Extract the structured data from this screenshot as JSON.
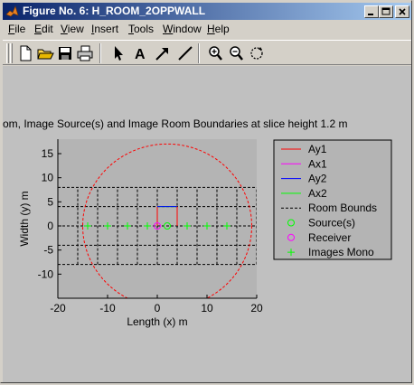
{
  "window": {
    "title": "Figure No. 6: H_ROOM_2OPPWALL",
    "minimize_label": "minimize",
    "maximize_label": "maximize",
    "close_label": "close"
  },
  "menu": [
    {
      "label": "File",
      "mnemonic": "F",
      "rest": "ile"
    },
    {
      "label": "Edit",
      "mnemonic": "E",
      "rest": "dit"
    },
    {
      "label": "View",
      "mnemonic": "V",
      "rest": "iew"
    },
    {
      "label": "Insert",
      "mnemonic": "I",
      "rest": "nsert"
    },
    {
      "label": "Tools",
      "mnemonic": "T",
      "rest": "ools"
    },
    {
      "label": "Window",
      "mnemonic": "W",
      "rest": "indow"
    },
    {
      "label": "Help",
      "mnemonic": "H",
      "rest": "elp"
    }
  ],
  "toolbar": {
    "icons": [
      "new-file-icon",
      "open-folder-icon",
      "save-icon",
      "print-icon",
      "arrow-select-icon",
      "text-insert-icon",
      "arrow-insert-icon",
      "line-insert-icon",
      "zoom-in-icon",
      "zoom-out-icon",
      "rotate-icon"
    ],
    "text_tool_glyph": "A"
  },
  "chart_data": {
    "type": "scatter",
    "title": "om, Image Source(s) and Image Room Boundaries at slice height 1.2 m",
    "xlabel": "Length (x) m",
    "ylabel": "Width (y) m",
    "xlim": [
      -20,
      20
    ],
    "ylim": [
      -15,
      18
    ],
    "xticks": [
      -20,
      -10,
      0,
      10,
      20
    ],
    "yticks": [
      -10,
      -5,
      0,
      5,
      10,
      15
    ],
    "grid": false,
    "legend_position": "right",
    "legend": [
      "Ay1",
      "Ax1",
      "Ay2",
      "Ax2",
      "Room Bounds",
      "Source(s)",
      "Receiver",
      "Images Mono"
    ],
    "colors": {
      "Ay1": "#ff0000",
      "Ax1": "#ff00ff",
      "Ay2": "#0000ff",
      "Ax2": "#00ff00",
      "Room Bounds": "#000000",
      "Source(s)": "#00ff00",
      "Receiver": "#ff00ff",
      "Images Mono": "#00ff00"
    },
    "room_bounds_x": [
      -20,
      -16,
      -12,
      -8,
      -4,
      0,
      4,
      8,
      12,
      16,
      20
    ],
    "room_bounds_y": [
      -8,
      -4,
      0,
      4,
      8
    ],
    "room_bounds_span": {
      "x": [
        -20,
        20
      ],
      "y": [
        -8,
        8
      ]
    },
    "circle": {
      "center": [
        2,
        0
      ],
      "radius": 17,
      "color": "#ff0000"
    },
    "receiver": [
      0,
      0
    ],
    "sources": [
      [
        2,
        0
      ]
    ],
    "images_mono": [
      [
        -14,
        0
      ],
      [
        -10,
        0
      ],
      [
        -6,
        0
      ],
      [
        -2,
        0
      ],
      [
        6,
        0
      ],
      [
        10,
        0
      ],
      [
        14,
        0
      ]
    ],
    "segments": [
      {
        "name": "Ay1",
        "from": [
          0,
          0
        ],
        "to": [
          0,
          4
        ]
      },
      {
        "name": "Ax2",
        "from": [
          0,
          4
        ],
        "to": [
          4,
          4
        ]
      },
      {
        "name": "Ay2",
        "from": [
          0,
          4
        ],
        "to": [
          4,
          4
        ]
      },
      {
        "name": "Ay1",
        "from": [
          4,
          0
        ],
        "to": [
          4,
          4
        ]
      }
    ]
  }
}
